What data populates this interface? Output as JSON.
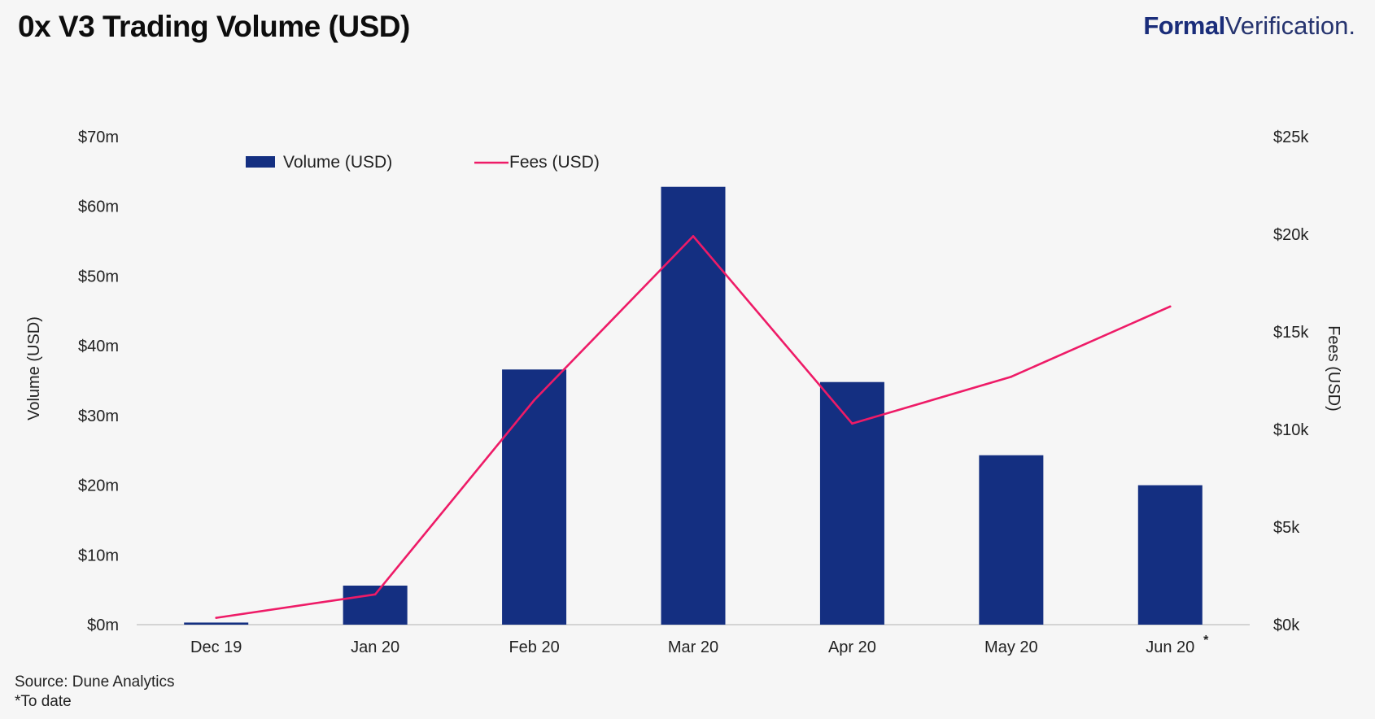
{
  "header": {
    "title": "0x V3 Trading Volume (USD)",
    "brand_bold": "Formal",
    "brand_light": "Verification."
  },
  "footer": {
    "source": "Source: Dune Analytics",
    "note": "*To date"
  },
  "chart_data": {
    "type": "bar",
    "categories": [
      "Dec 19",
      "Jan 20",
      "Feb 20",
      "Mar 20",
      "Apr 20",
      "May 20",
      "Jun 20"
    ],
    "category_annotations": [
      "",
      "",
      "",
      "",
      "",
      "",
      "*"
    ],
    "series": [
      {
        "name": "Volume (USD)",
        "type": "bar",
        "axis": "left",
        "color": "#142f81",
        "values": [
          0.3,
          5.6,
          36.6,
          62.8,
          34.8,
          24.3,
          20.0
        ]
      },
      {
        "name": "Fees (USD)",
        "type": "line",
        "axis": "right",
        "color": "#ee1b67",
        "values": [
          350,
          1550,
          11500,
          19900,
          10300,
          12700,
          16300
        ]
      }
    ],
    "y_left": {
      "label": "Volume (USD)",
      "ylim": [
        0,
        70
      ],
      "ticks": [
        0,
        10,
        20,
        30,
        40,
        50,
        60,
        70
      ],
      "tick_labels": [
        "$0m",
        "$10m",
        "$20m",
        "$30m",
        "$40m",
        "$50m",
        "$60m",
        "$70m"
      ]
    },
    "y_right": {
      "label": "Fees (USD)",
      "ylim": [
        0,
        25000
      ],
      "ticks": [
        0,
        5000,
        10000,
        15000,
        20000,
        25000
      ],
      "tick_labels": [
        "$0k",
        "$5k",
        "$10k",
        "$15k",
        "$20k",
        "$25k"
      ]
    },
    "grid": false,
    "legend": "top-left"
  }
}
